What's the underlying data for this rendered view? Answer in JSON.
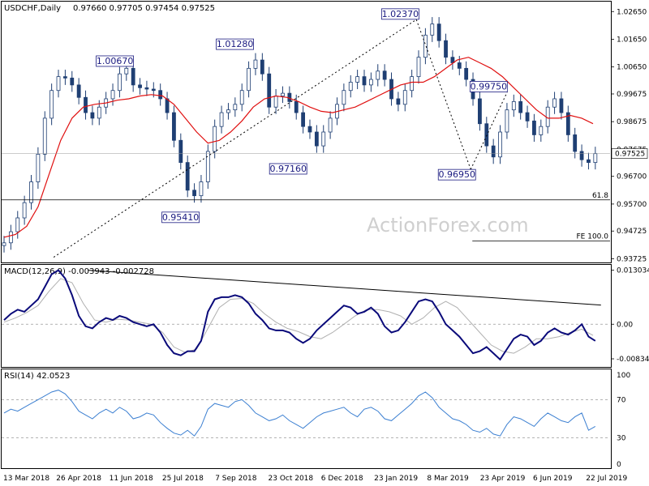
{
  "header": {
    "symbol": "USDCHF,Daily",
    "ohlc": "0.97660 0.97705 0.97454 0.97525",
    "macd_label": "MACD(12,26,9) -0.003943 -0.002728",
    "rsi_label": "RSI(14) 42.0523"
  },
  "watermark": "ActionForex.com",
  "colors": {
    "candle": "#1f3f73",
    "ma": "#e01010",
    "macd": "#0a0a7a",
    "signal": "#b0b0b0",
    "rsi": "#3b7fd1",
    "annotation_text": "#1a1a80",
    "level_line": "#000000"
  },
  "chart_data": [
    {
      "type": "line",
      "pane": "price",
      "title": "USDCHF,Daily",
      "subtitle": "0.97660 0.97705 0.97454 0.97525",
      "ylim": [
        0.9365,
        1.0295
      ],
      "y_ticks": [
        "1.02650",
        "1.01650",
        "1.00650",
        "0.99675",
        "0.98675",
        "0.97675",
        "0.96700",
        "0.95700",
        "0.94725",
        "0.93725"
      ],
      "current_price": "0.97525",
      "x_dates": [
        "13 Mar 2018",
        "26 Apr 2018",
        "11 Jun 2018",
        "25 Jul 2018",
        "7 Sep 2018",
        "23 Oct 2018",
        "6 Dec 2018",
        "23 Jan 2019",
        "8 Mar 2019",
        "23 Apr 2019",
        "6 Jun 2019",
        "22 Jul 2019"
      ],
      "series": [
        {
          "role": "price",
          "x": [
            0,
            6,
            12,
            18,
            24,
            30,
            36,
            42,
            48,
            54,
            60,
            66,
            72,
            78,
            84,
            90,
            96,
            102,
            108,
            114,
            120,
            126,
            132,
            138,
            144,
            150,
            156,
            162,
            168,
            174,
            180,
            186,
            192,
            198,
            204,
            210,
            216,
            222,
            228,
            234,
            240,
            246,
            252,
            258,
            264,
            270,
            276,
            282,
            288,
            294,
            300,
            306,
            312,
            318,
            324,
            330,
            336,
            342,
            348,
            354,
            360,
            366,
            372,
            378,
            384,
            390,
            396,
            402,
            408,
            414,
            420,
            426,
            432,
            438,
            444,
            450,
            456,
            462,
            468,
            474,
            480,
            486,
            492,
            498,
            504,
            510,
            516,
            522
          ],
          "values": [
            0.943,
            0.947,
            0.952,
            0.9575,
            0.965,
            0.975,
            0.988,
            0.998,
            1.003,
            1.0025,
            1.0,
            0.9955,
            0.99,
            0.988,
            0.992,
            0.995,
            0.998,
            1.004,
            1.006,
            1.0,
            0.999,
            0.9985,
            0.998,
            0.995,
            0.99,
            0.98,
            0.972,
            0.962,
            0.96,
            0.965,
            0.976,
            0.985,
            0.99,
            0.991,
            0.993,
            0.998,
            1.006,
            1.009,
            1.004,
            0.992,
            0.996,
            0.997,
            0.994,
            0.99,
            0.985,
            0.983,
            0.978,
            0.983,
            0.988,
            0.993,
            0.998,
            1.001,
            1.003,
            1.0,
            1.002,
            1.005,
            1.002,
            0.995,
            0.993,
            0.998,
            1.003,
            1.01,
            1.018,
            1.022,
            1.016,
            1.01,
            1.008,
            1.006,
            1.002,
            0.995,
            0.986,
            0.978,
            0.974,
            0.983,
            0.991,
            0.994,
            0.99,
            0.987,
            0.982,
            0.985,
            0.992,
            0.995,
            0.99,
            0.982,
            0.976,
            0.973,
            0.972,
            0.9752
          ]
        },
        {
          "role": "moving-average",
          "x": [
            0,
            10,
            20,
            30,
            40,
            50,
            60,
            70,
            80,
            90,
            100,
            110,
            120,
            130,
            140,
            150,
            160,
            170,
            180,
            190,
            200,
            210,
            220,
            230,
            240,
            250,
            260,
            270,
            280,
            290,
            300,
            310,
            320,
            330,
            340,
            350,
            360,
            370,
            380,
            390,
            400,
            410,
            420,
            430,
            440,
            450,
            460,
            470,
            480,
            490,
            500,
            510,
            520
          ],
          "values": [
            0.945,
            0.946,
            0.949,
            0.956,
            0.968,
            0.98,
            0.988,
            0.992,
            0.993,
            0.9935,
            0.9945,
            0.995,
            0.996,
            0.9965,
            0.996,
            0.993,
            0.988,
            0.983,
            0.979,
            0.98,
            0.983,
            0.987,
            0.992,
            0.995,
            0.996,
            0.9955,
            0.994,
            0.992,
            0.9905,
            0.99,
            0.991,
            0.992,
            0.994,
            0.996,
            0.998,
            1.0,
            1.001,
            1.001,
            1.003,
            1.006,
            1.009,
            1.01,
            1.008,
            1.006,
            1.003,
            0.999,
            0.995,
            0.991,
            0.988,
            0.988,
            0.989,
            0.988,
            0.986
          ]
        }
      ],
      "annotations": [
        {
          "label": "1.00670",
          "x": 110,
          "y": 1.0067
        },
        {
          "label": "0.95410",
          "x": 168,
          "y": 0.9541
        },
        {
          "label": "1.01280",
          "x": 216,
          "y": 1.0128
        },
        {
          "label": "0.97160",
          "x": 263,
          "y": 0.9716
        },
        {
          "label": "1.02370",
          "x": 362,
          "y": 1.0237
        },
        {
          "label": "0.96950",
          "x": 412,
          "y": 0.9695
        },
        {
          "label": "0.99750",
          "x": 440,
          "y": 0.9975
        }
      ],
      "levels": [
        {
          "label": "61.8",
          "y": 0.9585
        },
        {
          "label": "FE 100.0",
          "y": 0.9437
        }
      ],
      "watermark": "ActionForex.com"
    },
    {
      "type": "line",
      "pane": "macd",
      "title": "MACD(12,26,9) -0.003943 -0.002728",
      "ylim": [
        -0.0099,
        0.0139
      ],
      "y_ticks": [
        "0.013034",
        "0.00",
        "-0.00834"
      ],
      "series": [
        {
          "role": "macd",
          "x": [
            0,
            6,
            12,
            18,
            24,
            30,
            36,
            42,
            48,
            54,
            60,
            66,
            72,
            78,
            84,
            90,
            96,
            102,
            108,
            114,
            120,
            126,
            132,
            138,
            144,
            150,
            156,
            162,
            168,
            174,
            180,
            186,
            192,
            198,
            204,
            210,
            216,
            222,
            228,
            234,
            240,
            246,
            252,
            258,
            264,
            270,
            276,
            282,
            288,
            294,
            300,
            306,
            312,
            318,
            324,
            330,
            336,
            342,
            348,
            354,
            360,
            366,
            372,
            378,
            384,
            390,
            396,
            402,
            408,
            414,
            420,
            426,
            432,
            438,
            444,
            450,
            456,
            462,
            468,
            474,
            480,
            486,
            492,
            498,
            504,
            510,
            516,
            522
          ],
          "values": [
            0.001,
            0.0025,
            0.0035,
            0.003,
            0.0045,
            0.006,
            0.009,
            0.012,
            0.013,
            0.011,
            0.007,
            0.002,
            -0.0005,
            -0.001,
            0.0005,
            0.0015,
            0.001,
            0.002,
            0.0015,
            0.0005,
            0.0,
            -0.0005,
            0.0,
            -0.002,
            -0.005,
            -0.007,
            -0.0075,
            -0.0065,
            -0.0065,
            -0.004,
            0.003,
            0.006,
            0.0065,
            0.0065,
            0.007,
            0.0065,
            0.005,
            0.0025,
            0.001,
            -0.001,
            -0.0015,
            -0.0015,
            -0.002,
            -0.0035,
            -0.0045,
            -0.0035,
            -0.0015,
            0.0,
            0.0015,
            0.003,
            0.0045,
            0.004,
            0.0025,
            0.003,
            0.004,
            0.0025,
            -0.0005,
            -0.002,
            -0.0015,
            0.0005,
            0.003,
            0.0055,
            0.006,
            0.0055,
            0.003,
            0.0,
            -0.0015,
            -0.003,
            -0.005,
            -0.007,
            -0.0065,
            -0.0055,
            -0.007,
            -0.0085,
            -0.006,
            -0.0035,
            -0.0025,
            -0.003,
            -0.005,
            -0.004,
            -0.002,
            -0.001,
            -0.002,
            -0.0025,
            -0.0015,
            0.0,
            -0.003,
            -0.004
          ]
        },
        {
          "role": "signal",
          "x": [
            0,
            10,
            20,
            30,
            40,
            50,
            60,
            70,
            80,
            90,
            100,
            110,
            120,
            130,
            140,
            150,
            160,
            170,
            180,
            190,
            200,
            210,
            220,
            230,
            240,
            250,
            260,
            270,
            280,
            290,
            300,
            310,
            320,
            330,
            340,
            350,
            360,
            370,
            380,
            390,
            400,
            410,
            420,
            430,
            440,
            450,
            460,
            470,
            480,
            490,
            500,
            510,
            520
          ],
          "values": [
            0.0005,
            0.0015,
            0.0028,
            0.0045,
            0.008,
            0.011,
            0.01,
            0.005,
            0.001,
            0.0005,
            0.0012,
            0.001,
            0.0005,
            0.0,
            -0.002,
            -0.0055,
            -0.0068,
            -0.006,
            -0.001,
            0.004,
            0.006,
            0.0062,
            0.005,
            0.0025,
            0.0005,
            -0.001,
            -0.0018,
            -0.003,
            -0.0035,
            -0.002,
            0.0,
            0.002,
            0.0035,
            0.0035,
            0.003,
            0.002,
            0.0,
            0.0015,
            0.004,
            0.0055,
            0.004,
            0.001,
            -0.002,
            -0.005,
            -0.0065,
            -0.007,
            -0.0055,
            -0.0035,
            -0.0035,
            -0.003,
            -0.002,
            -0.0012,
            -0.0027
          ]
        }
      ],
      "trendline": {
        "x": [
          74,
          527
        ],
        "y": [
          0.013,
          0.0046
        ]
      }
    },
    {
      "type": "line",
      "pane": "rsi",
      "title": "RSI(14) 42.0523",
      "ylim": [
        0,
        100
      ],
      "y_ticks": [
        "100",
        "70",
        "30",
        "0"
      ],
      "series": [
        {
          "role": "rsi",
          "x": [
            0,
            6,
            12,
            18,
            24,
            30,
            36,
            42,
            48,
            54,
            60,
            66,
            72,
            78,
            84,
            90,
            96,
            102,
            108,
            114,
            120,
            126,
            132,
            138,
            144,
            150,
            156,
            162,
            168,
            174,
            180,
            186,
            192,
            198,
            204,
            210,
            216,
            222,
            228,
            234,
            240,
            246,
            252,
            258,
            264,
            270,
            276,
            282,
            288,
            294,
            300,
            306,
            312,
            318,
            324,
            330,
            336,
            342,
            348,
            354,
            360,
            366,
            372,
            378,
            384,
            390,
            396,
            402,
            408,
            414,
            420,
            426,
            432,
            438,
            444,
            450,
            456,
            462,
            468,
            474,
            480,
            486,
            492,
            498,
            504,
            510,
            516,
            522
          ],
          "values": [
            56,
            60,
            58,
            62,
            66,
            70,
            74,
            78,
            80,
            76,
            68,
            58,
            54,
            50,
            56,
            60,
            56,
            62,
            58,
            50,
            52,
            56,
            54,
            46,
            40,
            35,
            33,
            38,
            32,
            42,
            60,
            66,
            64,
            62,
            68,
            70,
            64,
            56,
            52,
            48,
            50,
            54,
            48,
            44,
            40,
            46,
            52,
            56,
            58,
            60,
            62,
            56,
            52,
            60,
            62,
            58,
            50,
            48,
            54,
            60,
            66,
            74,
            78,
            72,
            62,
            56,
            50,
            48,
            44,
            38,
            36,
            40,
            34,
            32,
            44,
            52,
            50,
            46,
            42,
            50,
            56,
            52,
            48,
            46,
            52,
            56,
            38,
            42
          ]
        }
      ],
      "levels": [
        70,
        30
      ]
    }
  ]
}
